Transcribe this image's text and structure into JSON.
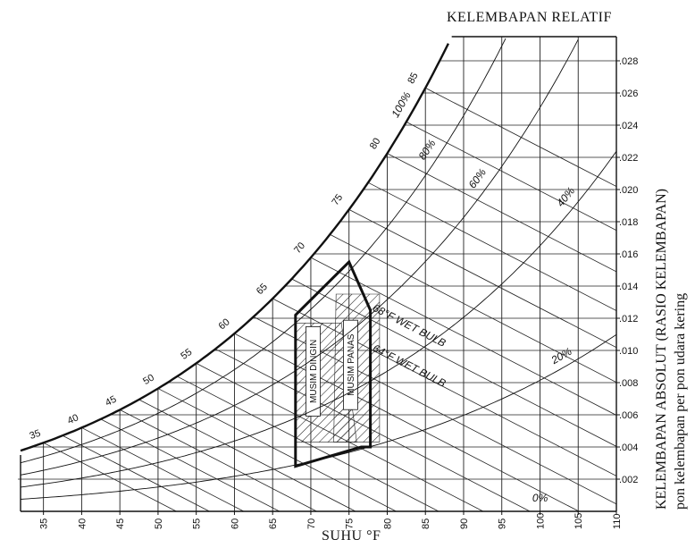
{
  "chart_data": {
    "type": "line",
    "title": "KELEMBAPAN RELATIF",
    "xlabel": "SUHU °F",
    "ylabel_line1": "KELEMBAPAN ABSOLUT (RASIO KELEMBAPAN)",
    "ylabel_line2": "pon kelembapan per pon udara kering",
    "xlim": [
      32,
      110
    ],
    "ylim": [
      0,
      0.03
    ],
    "x_ticks": [
      "35",
      "40",
      "45",
      "50",
      "55",
      "60",
      "65",
      "70",
      "75",
      "80",
      "85",
      "90",
      "95",
      "100",
      "105",
      "110"
    ],
    "y_ticks": [
      ".002",
      ".004",
      ".006",
      ".008",
      ".010",
      ".012",
      ".014",
      ".016",
      ".018",
      ".020",
      ".022",
      ".024",
      ".026",
      ".028"
    ],
    "rh_curves": [
      0.2,
      0.4,
      0.6,
      0.8,
      1.0
    ],
    "rh_labels": [
      "20%",
      "40%",
      "60%",
      "80%",
      "100%",
      "0%"
    ],
    "saturation_labels": [
      "35",
      "40",
      "45",
      "50",
      "55",
      "60",
      "65",
      "70",
      "75",
      "80",
      "85"
    ],
    "wet_bulb_labels": [
      "68°F WET BULB",
      "64°F WET BULB"
    ],
    "zones": [
      {
        "name": "MUSIM DINGIN",
        "points": [
          [
            68,
            0.0043
          ],
          [
            68,
            0.0117
          ],
          [
            74,
            0.0117
          ],
          [
            76,
            0.0043
          ]
        ]
      },
      {
        "name": "MUSIM PANAS",
        "points": [
          [
            73,
            0.0043
          ],
          [
            73.3,
            0.0135
          ],
          [
            79,
            0.0135
          ],
          [
            79,
            0.0043
          ]
        ]
      }
    ],
    "comfort_outline": [
      [
        68,
        0.0028
      ],
      [
        68,
        0.0122
      ],
      [
        75,
        0.0155
      ],
      [
        77.8,
        0.0125
      ],
      [
        77.8,
        0.004
      ],
      [
        76.6,
        0.004
      ]
    ]
  }
}
